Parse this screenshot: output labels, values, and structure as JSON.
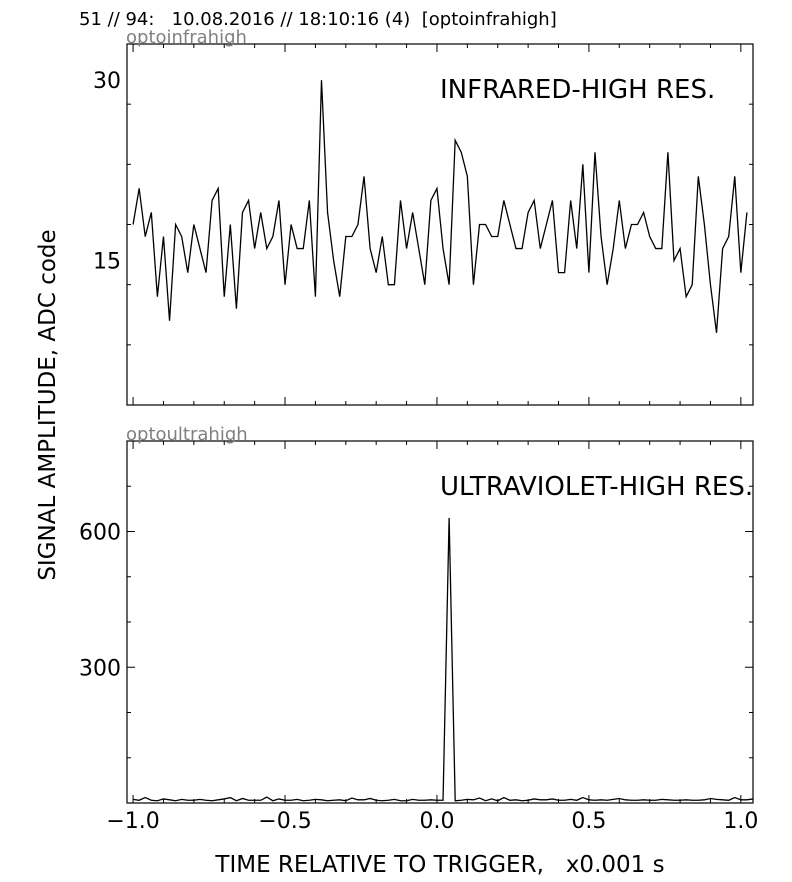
{
  "header": "51 // 94:   10.08.2016 // 18:10:16 (4)  [optoinfrahigh]",
  "chart_data": {
    "type": "line",
    "xlabel": "TIME RELATIVE TO TRIGGER,   x0.001 s",
    "ylabel": "SIGNAL AMPLITUDE,  ADC code",
    "xlim": [
      -1.02,
      1.04
    ],
    "xticks": [
      -1.0,
      -0.5,
      0.0,
      0.5,
      1.0
    ],
    "xtick_labels": [
      "−1.0",
      "−0.5",
      "0.0",
      "0.5",
      "1.0"
    ],
    "grid": false,
    "panels": [
      {
        "subtitle": "optoinfrahigh",
        "annotation": "INFRARED-HIGH RES.",
        "ylim": [
          3,
          33
        ],
        "yticks": [
          15,
          30
        ],
        "ytick_labels": [
          "15",
          "30"
        ],
        "x_start": -1.0,
        "x_step": 0.02,
        "values": [
          18,
          21,
          17,
          19,
          12,
          17,
          10,
          18,
          17,
          14,
          18,
          16,
          14,
          20,
          21,
          12,
          18,
          11,
          19,
          20,
          16,
          19,
          16,
          17,
          20,
          13,
          18,
          16,
          16,
          20,
          12,
          30,
          19,
          15,
          12,
          17,
          17,
          18,
          22,
          16,
          14,
          17,
          13,
          13,
          20,
          16,
          19,
          16,
          13,
          20,
          21,
          16,
          13,
          25,
          24,
          22,
          13,
          18,
          18,
          17,
          17,
          20,
          18,
          16,
          16,
          19,
          20,
          16,
          18,
          20,
          14,
          14,
          20,
          16,
          23,
          14,
          24,
          17,
          13,
          16,
          20,
          16,
          18,
          18,
          19,
          17,
          16,
          16,
          24,
          15,
          16,
          12,
          13,
          22,
          18,
          13,
          9,
          16,
          17,
          22,
          14,
          19
        ]
      },
      {
        "subtitle": "optoultrahigh",
        "annotation": "ULTRAVIOLET-HIGH RES.",
        "ylim": [
          0,
          800
        ],
        "yticks": [
          300,
          600
        ],
        "ytick_labels": [
          "300",
          "600"
        ],
        "x_start": -1.0,
        "x_step": 0.02,
        "values": [
          8,
          6,
          12,
          6,
          5,
          9,
          7,
          5,
          8,
          6,
          6,
          8,
          6,
          5,
          7,
          9,
          12,
          5,
          10,
          6,
          6,
          6,
          13,
          5,
          9,
          6,
          6,
          8,
          5,
          6,
          8,
          7,
          5,
          6,
          7,
          5,
          11,
          7,
          7,
          10,
          6,
          5,
          6,
          8,
          5,
          5,
          8,
          6,
          6,
          7,
          6,
          6,
          630,
          5,
          6,
          8,
          7,
          11,
          5,
          9,
          5,
          12,
          6,
          7,
          5,
          6,
          9,
          7,
          7,
          9,
          6,
          6,
          8,
          6,
          12,
          7,
          6,
          7,
          6,
          8,
          10,
          7,
          6,
          6,
          7,
          6,
          6,
          8,
          7,
          6,
          6,
          7,
          6,
          6,
          7,
          10,
          8,
          7,
          6,
          12,
          7,
          7,
          9
        ]
      }
    ]
  }
}
